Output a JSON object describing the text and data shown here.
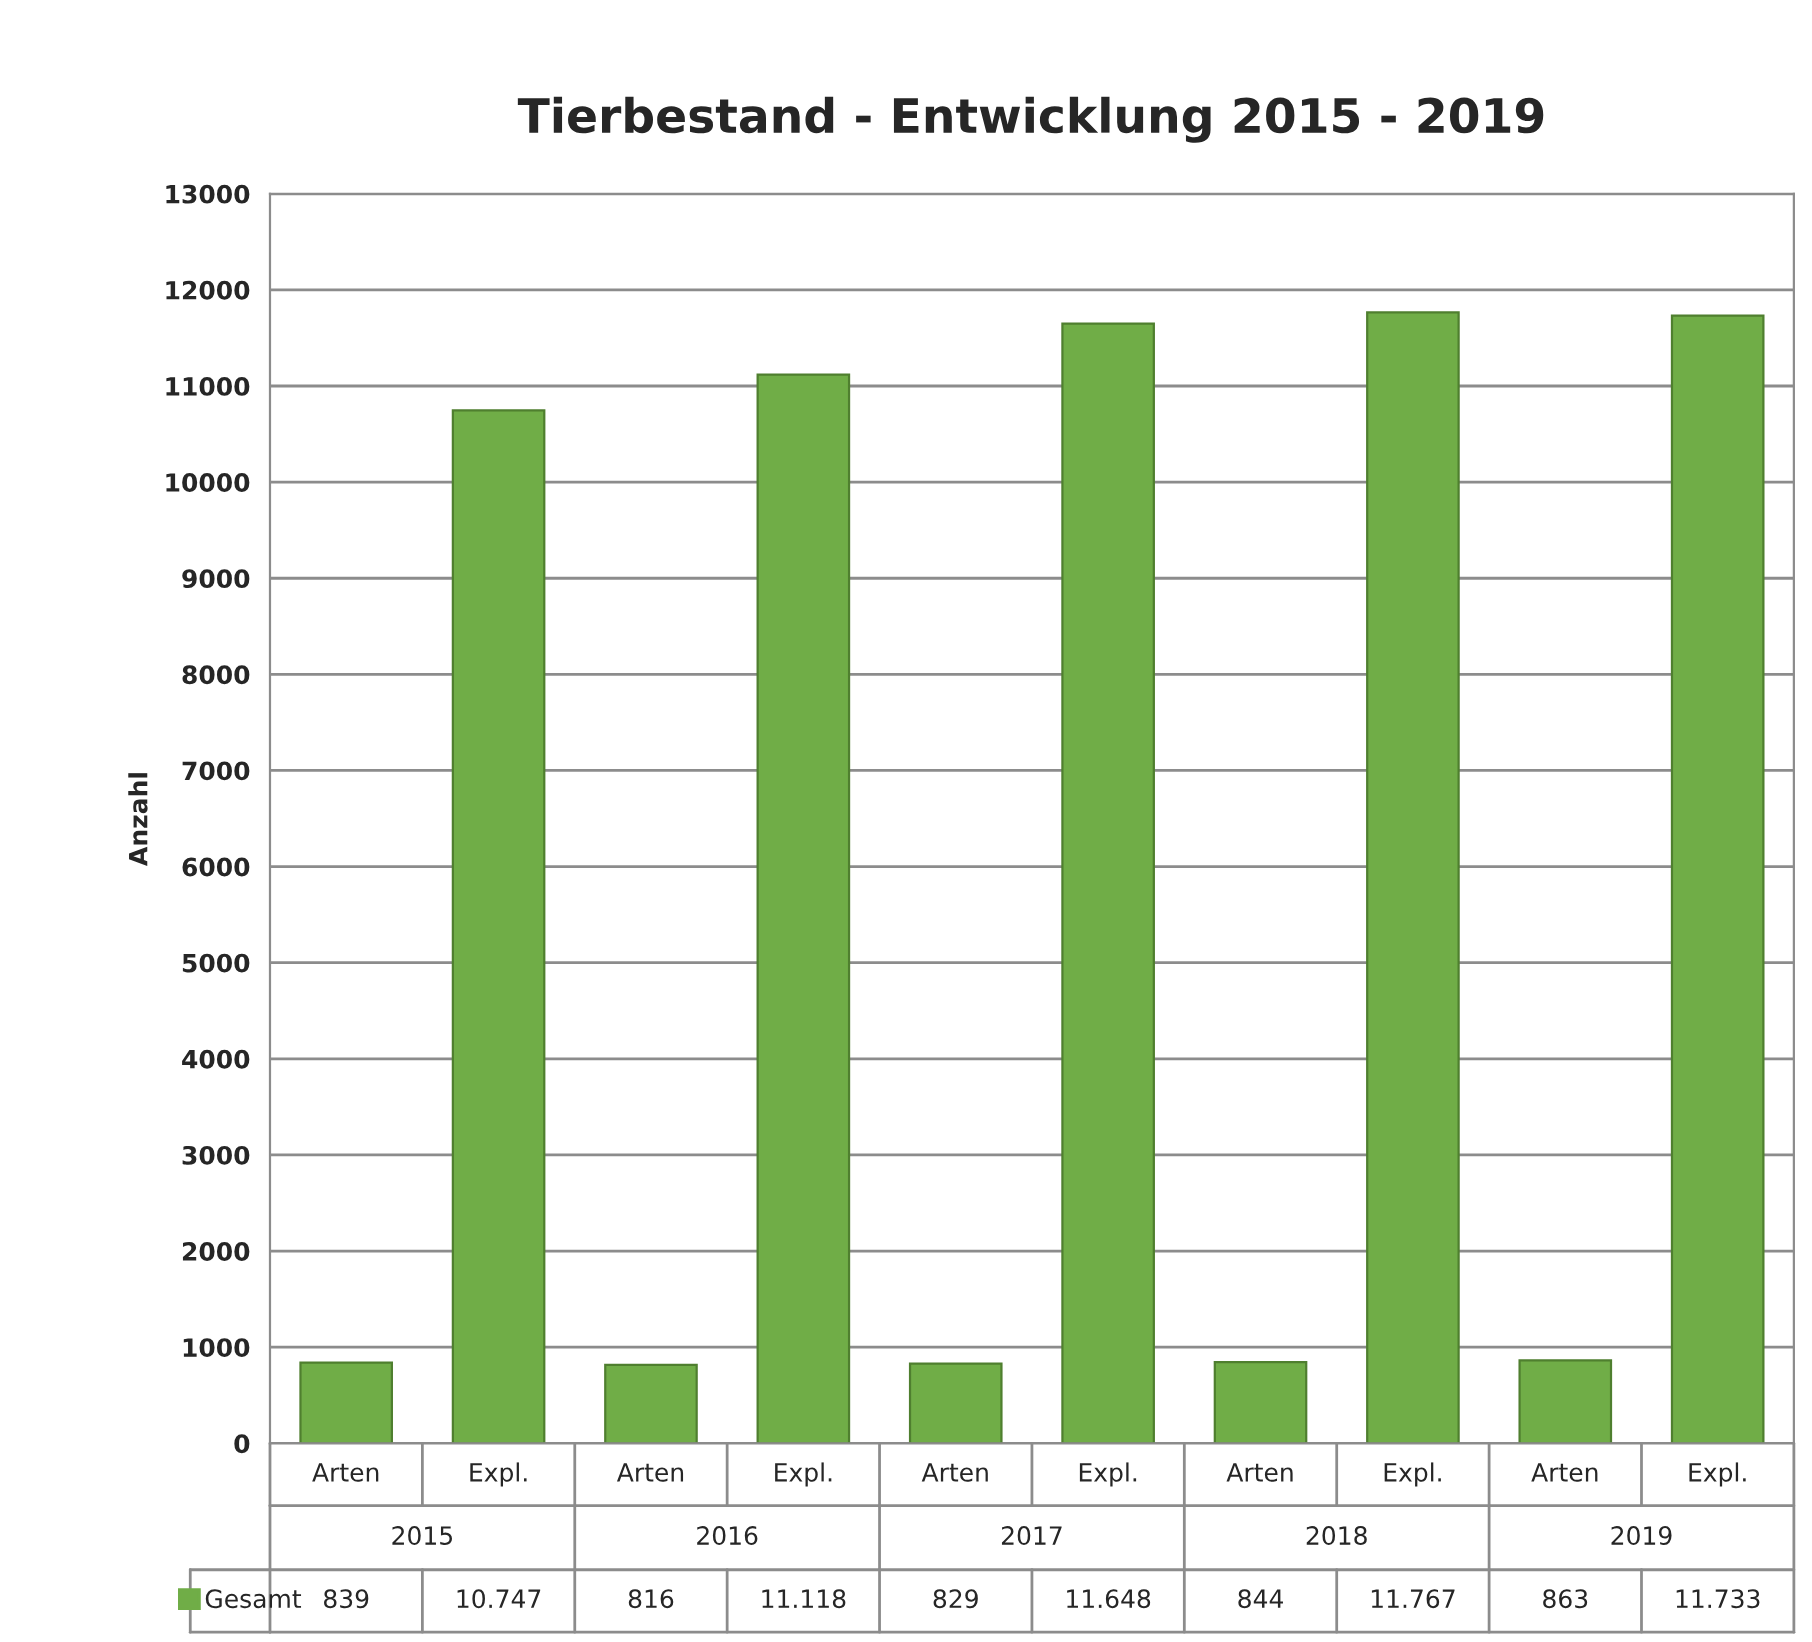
{
  "chart_data": {
    "type": "bar",
    "title": "Tierbestand - Entwicklung 2015 - 2019",
    "ylabel": "Anzahl",
    "categories": [
      "Arten",
      "Expl.",
      "Arten",
      "Expl.",
      "Arten",
      "Expl.",
      "Arten",
      "Expl.",
      "Arten",
      "Expl."
    ],
    "annotations": [
      "2015",
      "2016",
      "2017",
      "2018",
      "2019"
    ],
    "series": [
      {
        "name": "Gesamt",
        "color": "#70ad47",
        "values": [
          839,
          10747,
          816,
          11118,
          829,
          11648,
          844,
          11767,
          863,
          11733
        ],
        "value_labels": [
          "839",
          "10.747",
          "816",
          "11.118",
          "829",
          "11.648",
          "844",
          "11.767",
          "863",
          "11.733"
        ]
      }
    ],
    "ylim": [
      0,
      13000
    ],
    "yticks": [
      0,
      1000,
      2000,
      3000,
      4000,
      5000,
      6000,
      7000,
      8000,
      9000,
      10000,
      11000,
      12000,
      13000
    ],
    "grid": "y",
    "legend": "bottom left"
  }
}
